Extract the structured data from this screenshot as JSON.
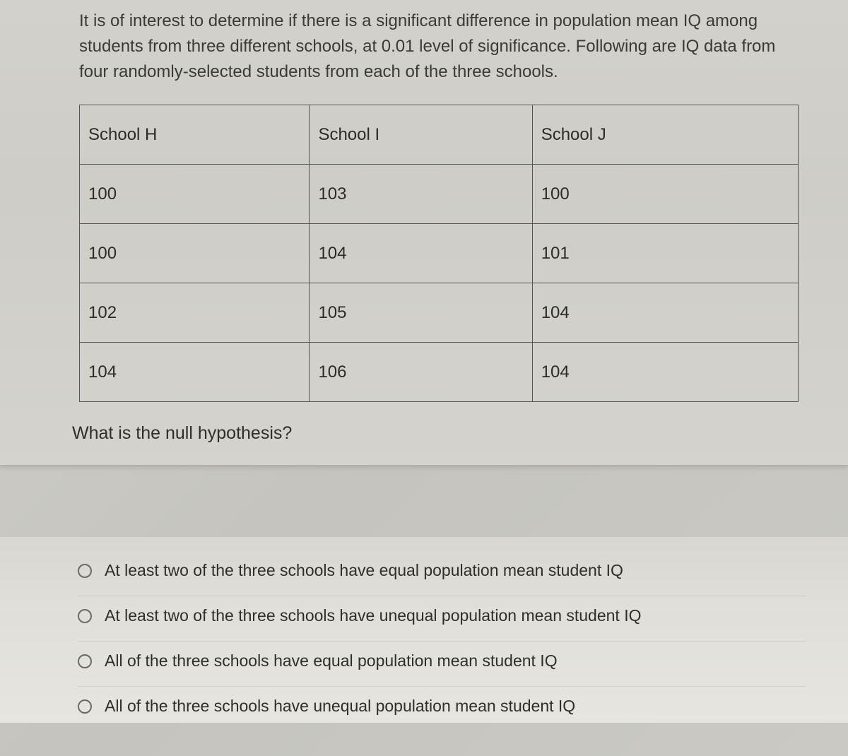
{
  "problem_text": "It is of interest to determine if  there is a significant difference in population mean IQ among students from three different schools, at 0.01 level of significance. Following are IQ data from four randomly-selected students from each of the three schools.",
  "table": {
    "columns": [
      "School H",
      "School I",
      "School J"
    ],
    "rows": [
      [
        "100",
        "103",
        "100"
      ],
      [
        "100",
        "104",
        "101"
      ],
      [
        "102",
        "105",
        "104"
      ],
      [
        "104",
        "106",
        "104"
      ]
    ],
    "border_color": "#555555",
    "cell_fontsize": 24,
    "cell_padding": "22px 12px"
  },
  "question": "What is the null hypothesis?",
  "options": [
    "At least two of the three schools have equal population mean student IQ",
    "At least two of the three schools have unequal population mean student IQ",
    "All of the three schools have equal population mean student IQ",
    "All of the three schools have unequal population mean student IQ"
  ],
  "colors": {
    "page_bg": "#cecdc7",
    "text": "#2e2e2c",
    "radio_border": "#6a6a66"
  },
  "typography": {
    "body_fontsize": 24,
    "question_fontsize": 25,
    "option_fontsize": 23,
    "font_family": "Arial, Helvetica, sans-serif"
  }
}
